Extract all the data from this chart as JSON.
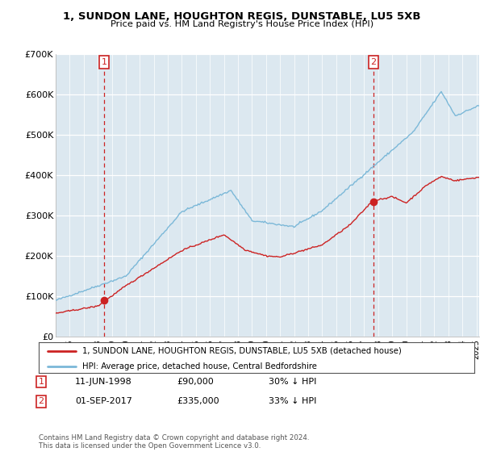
{
  "title1": "1, SUNDON LANE, HOUGHTON REGIS, DUNSTABLE, LU5 5XB",
  "title2": "Price paid vs. HM Land Registry's House Price Index (HPI)",
  "ylim": [
    0,
    700000
  ],
  "yticks": [
    0,
    100000,
    200000,
    300000,
    400000,
    500000,
    600000,
    700000
  ],
  "ytick_labels": [
    "£0",
    "£100K",
    "£200K",
    "£300K",
    "£400K",
    "£500K",
    "£600K",
    "£700K"
  ],
  "sale1_date": 1998.45,
  "sale1_price": 90000,
  "sale2_date": 2017.67,
  "sale2_price": 335000,
  "legend_line1": "1, SUNDON LANE, HOUGHTON REGIS, DUNSTABLE, LU5 5XB (detached house)",
  "legend_line2": "HPI: Average price, detached house, Central Bedfordshire",
  "ann1_label": "1",
  "ann1_date": "11-JUN-1998",
  "ann1_price": "£90,000",
  "ann1_hpi": "30% ↓ HPI",
  "ann2_label": "2",
  "ann2_date": "01-SEP-2017",
  "ann2_price": "£335,000",
  "ann2_hpi": "33% ↓ HPI",
  "copyright": "Contains HM Land Registry data © Crown copyright and database right 2024.\nThis data is licensed under the Open Government Licence v3.0.",
  "hpi_color": "#7bb8d8",
  "price_color": "#cc2222",
  "vline_color": "#cc2222",
  "chart_bg": "#dce8f0",
  "fig_bg": "#ffffff",
  "grid_color": "#ffffff",
  "xlim_left": 1995.0,
  "xlim_right": 2025.2
}
